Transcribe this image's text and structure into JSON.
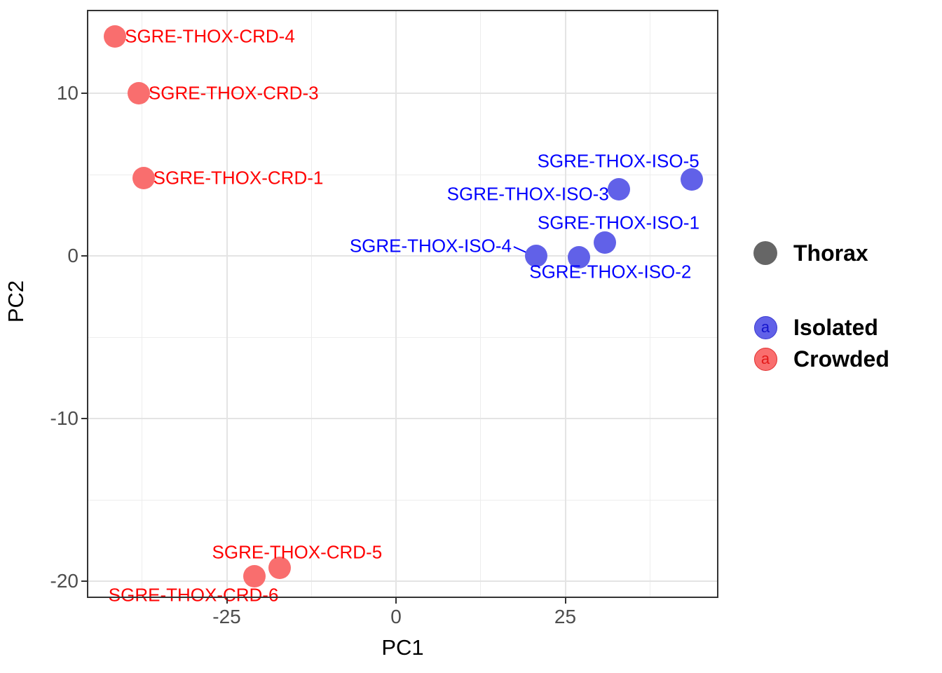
{
  "figure": {
    "background": "#FFFFFF",
    "panel_border_color": "#333333",
    "grid_major_color": "#E4E4E4",
    "grid_minor_color": "#EDEDED",
    "tick_color": "#333333",
    "tick_label_color": "#4D4D4D",
    "axis_title_color": "#000000"
  },
  "chart_data": {
    "type": "scatter",
    "title": "",
    "xlabel": "PC1",
    "ylabel": "PC2",
    "x_ticks": [
      -25,
      0,
      25
    ],
    "y_ticks": [
      10,
      0,
      -10,
      -20
    ],
    "x_minor_ticks": [
      -37.5,
      -12.5,
      12.5,
      37.5
    ],
    "y_minor_ticks": [
      15,
      5,
      -5,
      -15
    ],
    "xlim": [
      -45.6,
      47.6
    ],
    "ylim": [
      -21.2,
      15.1
    ],
    "grid": "on",
    "legend_position": "right",
    "series": [
      {
        "name": "Isolated",
        "color": "#0000FF",
        "point_fill": "#6161E8",
        "points": [
          {
            "label": "SGRE-THOX-ISO-4",
            "x": 20.7,
            "y": 0.0,
            "anchor": "end",
            "dx": -35,
            "dy": -14,
            "leader": true
          },
          {
            "label": "SGRE-THOX-ISO-2",
            "x": 27.0,
            "y": -0.1,
            "anchor": "middle",
            "dx": 45,
            "dy": 21
          },
          {
            "label": "SGRE-THOX-ISO-1",
            "x": 30.9,
            "y": 0.8,
            "anchor": "middle",
            "dx": 19,
            "dy": -28
          },
          {
            "label": "SGRE-THOX-ISO-3",
            "x": 32.9,
            "y": 4.1,
            "anchor": "end",
            "dx": -14,
            "dy": 7
          },
          {
            "label": "SGRE-THOX-ISO-5",
            "x": 43.7,
            "y": 4.7,
            "anchor": "middle",
            "dx": -105,
            "dy": -26
          }
        ]
      },
      {
        "name": "Crowded",
        "color": "#FF0000",
        "point_fill": "#F96E6E",
        "points": [
          {
            "label": "SGRE-THOX-CRD-4",
            "x": -41.5,
            "y": 13.5,
            "anchor": "start",
            "dx": 14,
            "dy": 0
          },
          {
            "label": "SGRE-THOX-CRD-3",
            "x": -38.0,
            "y": 10.0,
            "anchor": "start",
            "dx": 14,
            "dy": 0
          },
          {
            "label": "SGRE-THOX-CRD-1",
            "x": -37.3,
            "y": 4.8,
            "anchor": "start",
            "dx": 14,
            "dy": 0
          },
          {
            "label": "SGRE-THOX-CRD-5",
            "x": -17.2,
            "y": -19.2,
            "anchor": "middle",
            "dx": 25,
            "dy": -22
          },
          {
            "label": "SGRE-THOX-CRD-6",
            "x": -20.9,
            "y": -19.7,
            "anchor": "middle",
            "dx": -87,
            "dy": 27
          }
        ]
      }
    ]
  },
  "legend": {
    "shape_item": {
      "label": "Thorax",
      "key_color": "#666666"
    },
    "color_items": [
      {
        "label": "Isolated",
        "key_glyph": "a",
        "key_fill": "#6161E8",
        "key_border": "#3A3AD0",
        "glyph_color": "#1515CC"
      },
      {
        "label": "Crowded",
        "key_glyph": "a",
        "key_fill": "#F96E6E",
        "key_border": "#E03030",
        "glyph_color": "#E31A1A"
      }
    ]
  }
}
